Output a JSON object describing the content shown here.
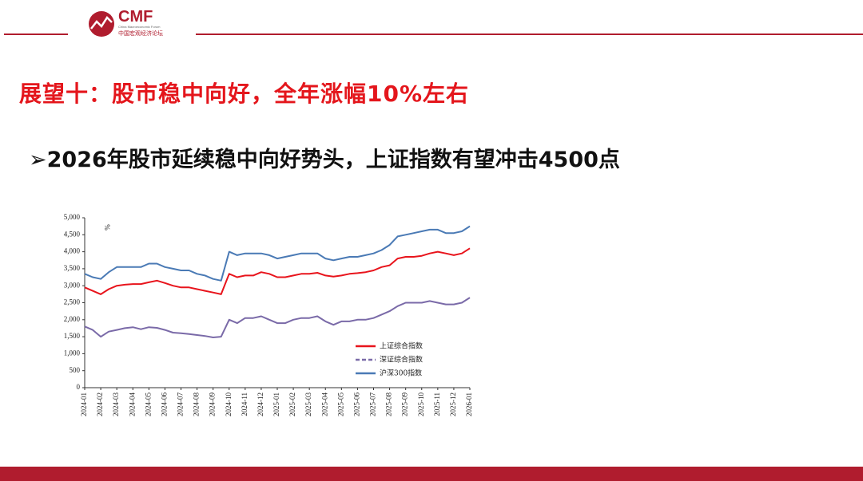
{
  "logo": {
    "mark": "CMF",
    "english": "China Macroeconomic Forum",
    "chinese": "中国宏观经济论坛"
  },
  "title": "展望十：股市稳中向好，全年涨幅10%左右",
  "subtitle": "➢2026年股市延续稳中向好势头，上证指数有望冲击4500点",
  "chart_data": {
    "type": "line",
    "unit": "%",
    "categories": [
      "2024-01",
      null,
      "2024-02",
      null,
      "2024-03",
      null,
      "2024-04",
      null,
      "2024-05",
      null,
      "2024-06",
      null,
      "2024-07",
      null,
      "2024-08",
      null,
      "2024-09",
      null,
      "2024-10",
      null,
      "2024-11",
      null,
      "2024-12",
      null,
      "2025-01",
      null,
      "2025-02",
      null,
      "2025-03",
      null,
      "2025-04",
      null,
      "2025-05",
      null,
      "2025-06",
      null,
      "2025-07",
      null,
      "2025-08",
      null,
      "2025-09",
      null,
      "2025-10",
      null,
      "2025-11",
      null,
      "2025-12",
      null,
      "2026-01"
    ],
    "series": [
      {
        "name": "上证综合指数",
        "color": "#e8141c",
        "dash": false,
        "values": [
          2950,
          2850,
          2750,
          2900,
          3000,
          3030,
          3050,
          3050,
          3100,
          3150,
          3080,
          3000,
          2950,
          2950,
          2900,
          2850,
          2800,
          2750,
          3350,
          3250,
          3300,
          3300,
          3400,
          3350,
          3250,
          3250,
          3300,
          3350,
          3350,
          3380,
          3300,
          3270,
          3300,
          3350,
          3370,
          3400,
          3450,
          3550,
          3600,
          3800,
          3850,
          3850,
          3880,
          3950,
          4000,
          3950,
          3900,
          3950,
          4100
        ]
      },
      {
        "name": "深证综合指数",
        "color": "#7a6aa8",
        "dash": true,
        "values": [
          1800,
          1700,
          1500,
          1650,
          1700,
          1750,
          1780,
          1720,
          1780,
          1760,
          1700,
          1620,
          1600,
          1580,
          1550,
          1520,
          1480,
          1500,
          2000,
          1900,
          2050,
          2050,
          2100,
          2000,
          1900,
          1900,
          2000,
          2050,
          2050,
          2100,
          1950,
          1850,
          1950,
          1950,
          2000,
          2000,
          2050,
          2150,
          2250,
          2400,
          2500,
          2500,
          2500,
          2550,
          2500,
          2450,
          2450,
          2500,
          2650
        ]
      },
      {
        "name": "沪深300指数",
        "color": "#4a7ab5",
        "dash": false,
        "values": [
          3350,
          3250,
          3200,
          3400,
          3550,
          3550,
          3550,
          3550,
          3650,
          3650,
          3550,
          3500,
          3450,
          3450,
          3350,
          3300,
          3200,
          3150,
          4000,
          3900,
          3950,
          3950,
          3950,
          3900,
          3800,
          3850,
          3900,
          3950,
          3950,
          3950,
          3800,
          3750,
          3800,
          3850,
          3850,
          3900,
          3950,
          4050,
          4200,
          4450,
          4500,
          4550,
          4600,
          4650,
          4650,
          4550,
          4550,
          4600,
          4750
        ]
      }
    ],
    "ylim": [
      0,
      5000
    ],
    "yticks": [
      0,
      500,
      {
        "value": 1000,
        "label": "1,000"
      },
      {
        "value": 1500,
        "label": "1,500"
      },
      {
        "value": 2000,
        "label": "2,000"
      },
      {
        "value": 2500,
        "label": "2,500"
      },
      {
        "value": 3000,
        "label": "3,000"
      },
      {
        "value": 3500,
        "label": "3,500"
      },
      {
        "value": 4000,
        "label": "4,000"
      },
      {
        "value": 4500,
        "label": "4,500"
      },
      {
        "value": 5000,
        "label": "5,000"
      }
    ],
    "grid": false,
    "legend": "lower-right"
  }
}
